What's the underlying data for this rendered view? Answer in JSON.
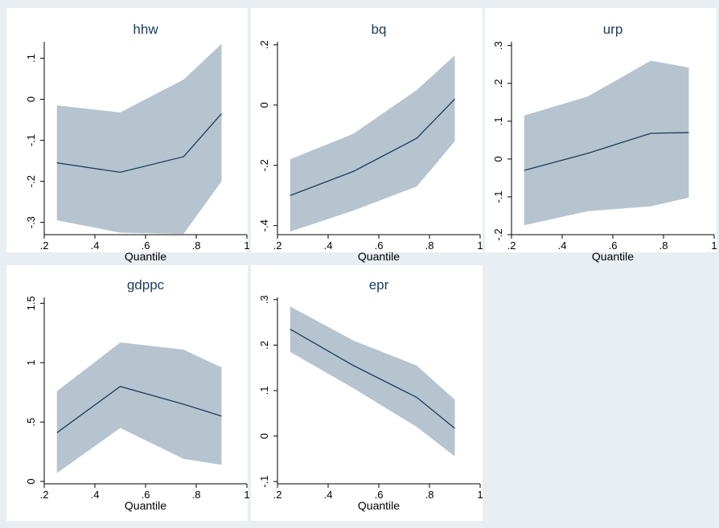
{
  "chart_data": [
    {
      "type": "area",
      "title": "hhw",
      "xlabel": "Quantile",
      "ylabel": "",
      "xlim": [
        0.2,
        1
      ],
      "ylim": [
        -0.33,
        0.14
      ],
      "xticks": [
        0.2,
        0.4,
        0.6,
        0.8,
        1
      ],
      "xtick_labels": [
        ".2",
        ".4",
        ".6",
        ".8",
        "1"
      ],
      "yticks": [
        -0.3,
        -0.2,
        -0.1,
        0,
        0.1
      ],
      "ytick_labels": [
        "-.3",
        "-.2",
        "-.1",
        "0",
        ".1"
      ],
      "x": [
        0.25,
        0.5,
        0.75,
        0.9
      ],
      "series": [
        {
          "values": [
            -0.155,
            -0.178,
            -0.14,
            -0.035
          ],
          "lower": [
            -0.295,
            -0.325,
            -0.328,
            -0.2
          ],
          "upper": [
            -0.015,
            -0.032,
            0.048,
            0.135
          ]
        }
      ]
    },
    {
      "type": "area",
      "title": "bq",
      "xlabel": "Quantile",
      "ylabel": "",
      "xlim": [
        0.2,
        1
      ],
      "ylim": [
        -0.43,
        0.21
      ],
      "xticks": [
        0.2,
        0.4,
        0.6,
        0.8,
        1
      ],
      "xtick_labels": [
        ".2",
        ".4",
        ".6",
        ".8",
        "1"
      ],
      "yticks": [
        -0.4,
        -0.2,
        0,
        0.2
      ],
      "ytick_labels": [
        "-.4",
        "-.2",
        "0",
        ".2"
      ],
      "x": [
        0.25,
        0.5,
        0.75,
        0.9
      ],
      "series": [
        {
          "values": [
            -0.3,
            -0.22,
            -0.11,
            0.02
          ],
          "lower": [
            -0.42,
            -0.35,
            -0.27,
            -0.12
          ],
          "upper": [
            -0.18,
            -0.095,
            0.05,
            0.165
          ]
        }
      ]
    },
    {
      "type": "area",
      "title": "urp",
      "xlabel": "Quantile",
      "ylabel": "",
      "xlim": [
        0.2,
        1
      ],
      "ylim": [
        -0.2,
        0.31
      ],
      "xticks": [
        0.2,
        0.4,
        0.6,
        0.8,
        1
      ],
      "xtick_labels": [
        ".2",
        ".4",
        ".6",
        ".8",
        "1"
      ],
      "yticks": [
        -0.2,
        -0.1,
        0,
        0.1,
        0.2,
        0.3
      ],
      "ytick_labels": [
        "-.2",
        "-.1",
        "0",
        ".1",
        ".2",
        ".3"
      ],
      "x": [
        0.25,
        0.5,
        0.75,
        0.9
      ],
      "series": [
        {
          "values": [
            -0.03,
            0.015,
            0.068,
            0.07
          ],
          "lower": [
            -0.175,
            -0.138,
            -0.125,
            -0.102
          ],
          "upper": [
            0.115,
            0.165,
            0.26,
            0.242
          ]
        }
      ]
    },
    {
      "type": "area",
      "title": "gdppc",
      "xlabel": "Quantile",
      "ylabel": "",
      "xlim": [
        0.2,
        1
      ],
      "ylim": [
        -0.02,
        1.55
      ],
      "xticks": [
        0.2,
        0.4,
        0.6,
        0.8,
        1
      ],
      "xtick_labels": [
        ".2",
        ".4",
        ".6",
        ".8",
        "1"
      ],
      "yticks": [
        0,
        0.5,
        1,
        1.5
      ],
      "ytick_labels": [
        "0",
        ".5",
        "1",
        "1.5"
      ],
      "x": [
        0.25,
        0.5,
        0.75,
        0.9
      ],
      "series": [
        {
          "values": [
            0.41,
            0.8,
            0.65,
            0.55
          ],
          "lower": [
            0.07,
            0.45,
            0.19,
            0.14
          ],
          "upper": [
            0.76,
            1.17,
            1.11,
            0.96
          ]
        }
      ]
    },
    {
      "type": "area",
      "title": "epr",
      "xlabel": "Quantile",
      "ylabel": "",
      "xlim": [
        0.2,
        1
      ],
      "ylim": [
        -0.105,
        0.305
      ],
      "xticks": [
        0.2,
        0.4,
        0.6,
        0.8,
        1
      ],
      "xtick_labels": [
        ".2",
        ".4",
        ".6",
        ".8",
        "1"
      ],
      "yticks": [
        -0.1,
        0,
        0.1,
        0.2,
        0.3
      ],
      "ytick_labels": [
        "-.1",
        "0",
        ".1",
        ".2",
        ".3"
      ],
      "x": [
        0.25,
        0.5,
        0.75,
        0.9
      ],
      "series": [
        {
          "values": [
            0.235,
            0.155,
            0.085,
            0.017
          ],
          "lower": [
            0.185,
            0.105,
            0.02,
            -0.045
          ],
          "upper": [
            0.285,
            0.21,
            0.155,
            0.08
          ]
        }
      ]
    }
  ]
}
